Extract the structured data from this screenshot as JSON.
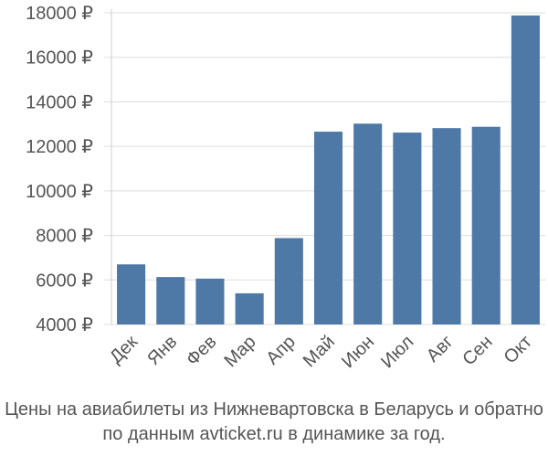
{
  "chart_data": {
    "type": "bar",
    "categories": [
      "Дек",
      "Янв",
      "Фев",
      "Мар",
      "Апр",
      "Май",
      "Июн",
      "Июл",
      "Авг",
      "Сен",
      "Окт"
    ],
    "values": [
      6700,
      6130,
      6060,
      5400,
      7880,
      12660,
      13020,
      12620,
      12820,
      12880,
      17880
    ],
    "ylim": [
      4000,
      18000
    ],
    "yticks": [
      4000,
      6000,
      8000,
      10000,
      12000,
      14000,
      16000,
      18000
    ],
    "ytick_labels": [
      "4000 ₽",
      "6000 ₽",
      "8000 ₽",
      "10000 ₽",
      "12000 ₽",
      "14000 ₽",
      "16000 ₽",
      "18000 ₽"
    ],
    "grid": true,
    "bar_color": "#4e79a7",
    "caption": [
      "Цены на авиабилеты из Нижневартовска в Беларусь и обратно",
      "по данным avticket.ru в динамике за год."
    ]
  }
}
